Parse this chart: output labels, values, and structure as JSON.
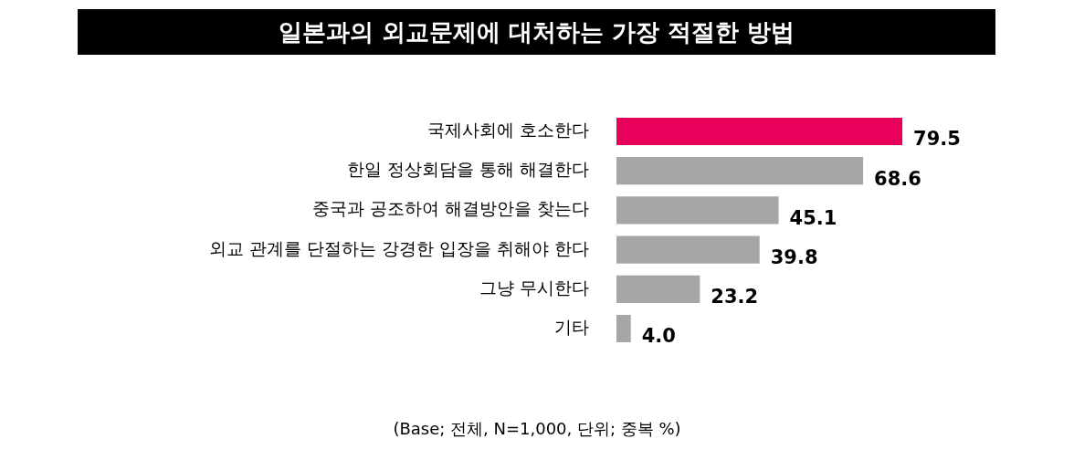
{
  "chart_data": {
    "type": "bar",
    "orientation": "horizontal",
    "title": "일본과의 외교문제에 대처하는 가장 적절한 방법",
    "categories": [
      "국제사회에 호소한다",
      "한일 정상회담을 통해 해결한다",
      "중국과 공조하여 해결방안을 찾는다",
      "외교 관계를 단절하는 강경한 입장을 취해야 한다",
      "그냥 무시한다",
      "기타"
    ],
    "values": [
      79.5,
      68.6,
      45.1,
      39.8,
      23.2,
      4.0
    ],
    "value_labels": [
      "79.5",
      "68.6",
      "45.1",
      "39.8",
      "23.2",
      "4.0"
    ],
    "colors": [
      "#e8005a",
      "#a6a6a6",
      "#a6a6a6",
      "#a6a6a6",
      "#a6a6a6",
      "#a6a6a6"
    ],
    "annotations": [
      "(Base; 전체, N=1,000, 단위; 중복 %)"
    ],
    "legend": false
  }
}
